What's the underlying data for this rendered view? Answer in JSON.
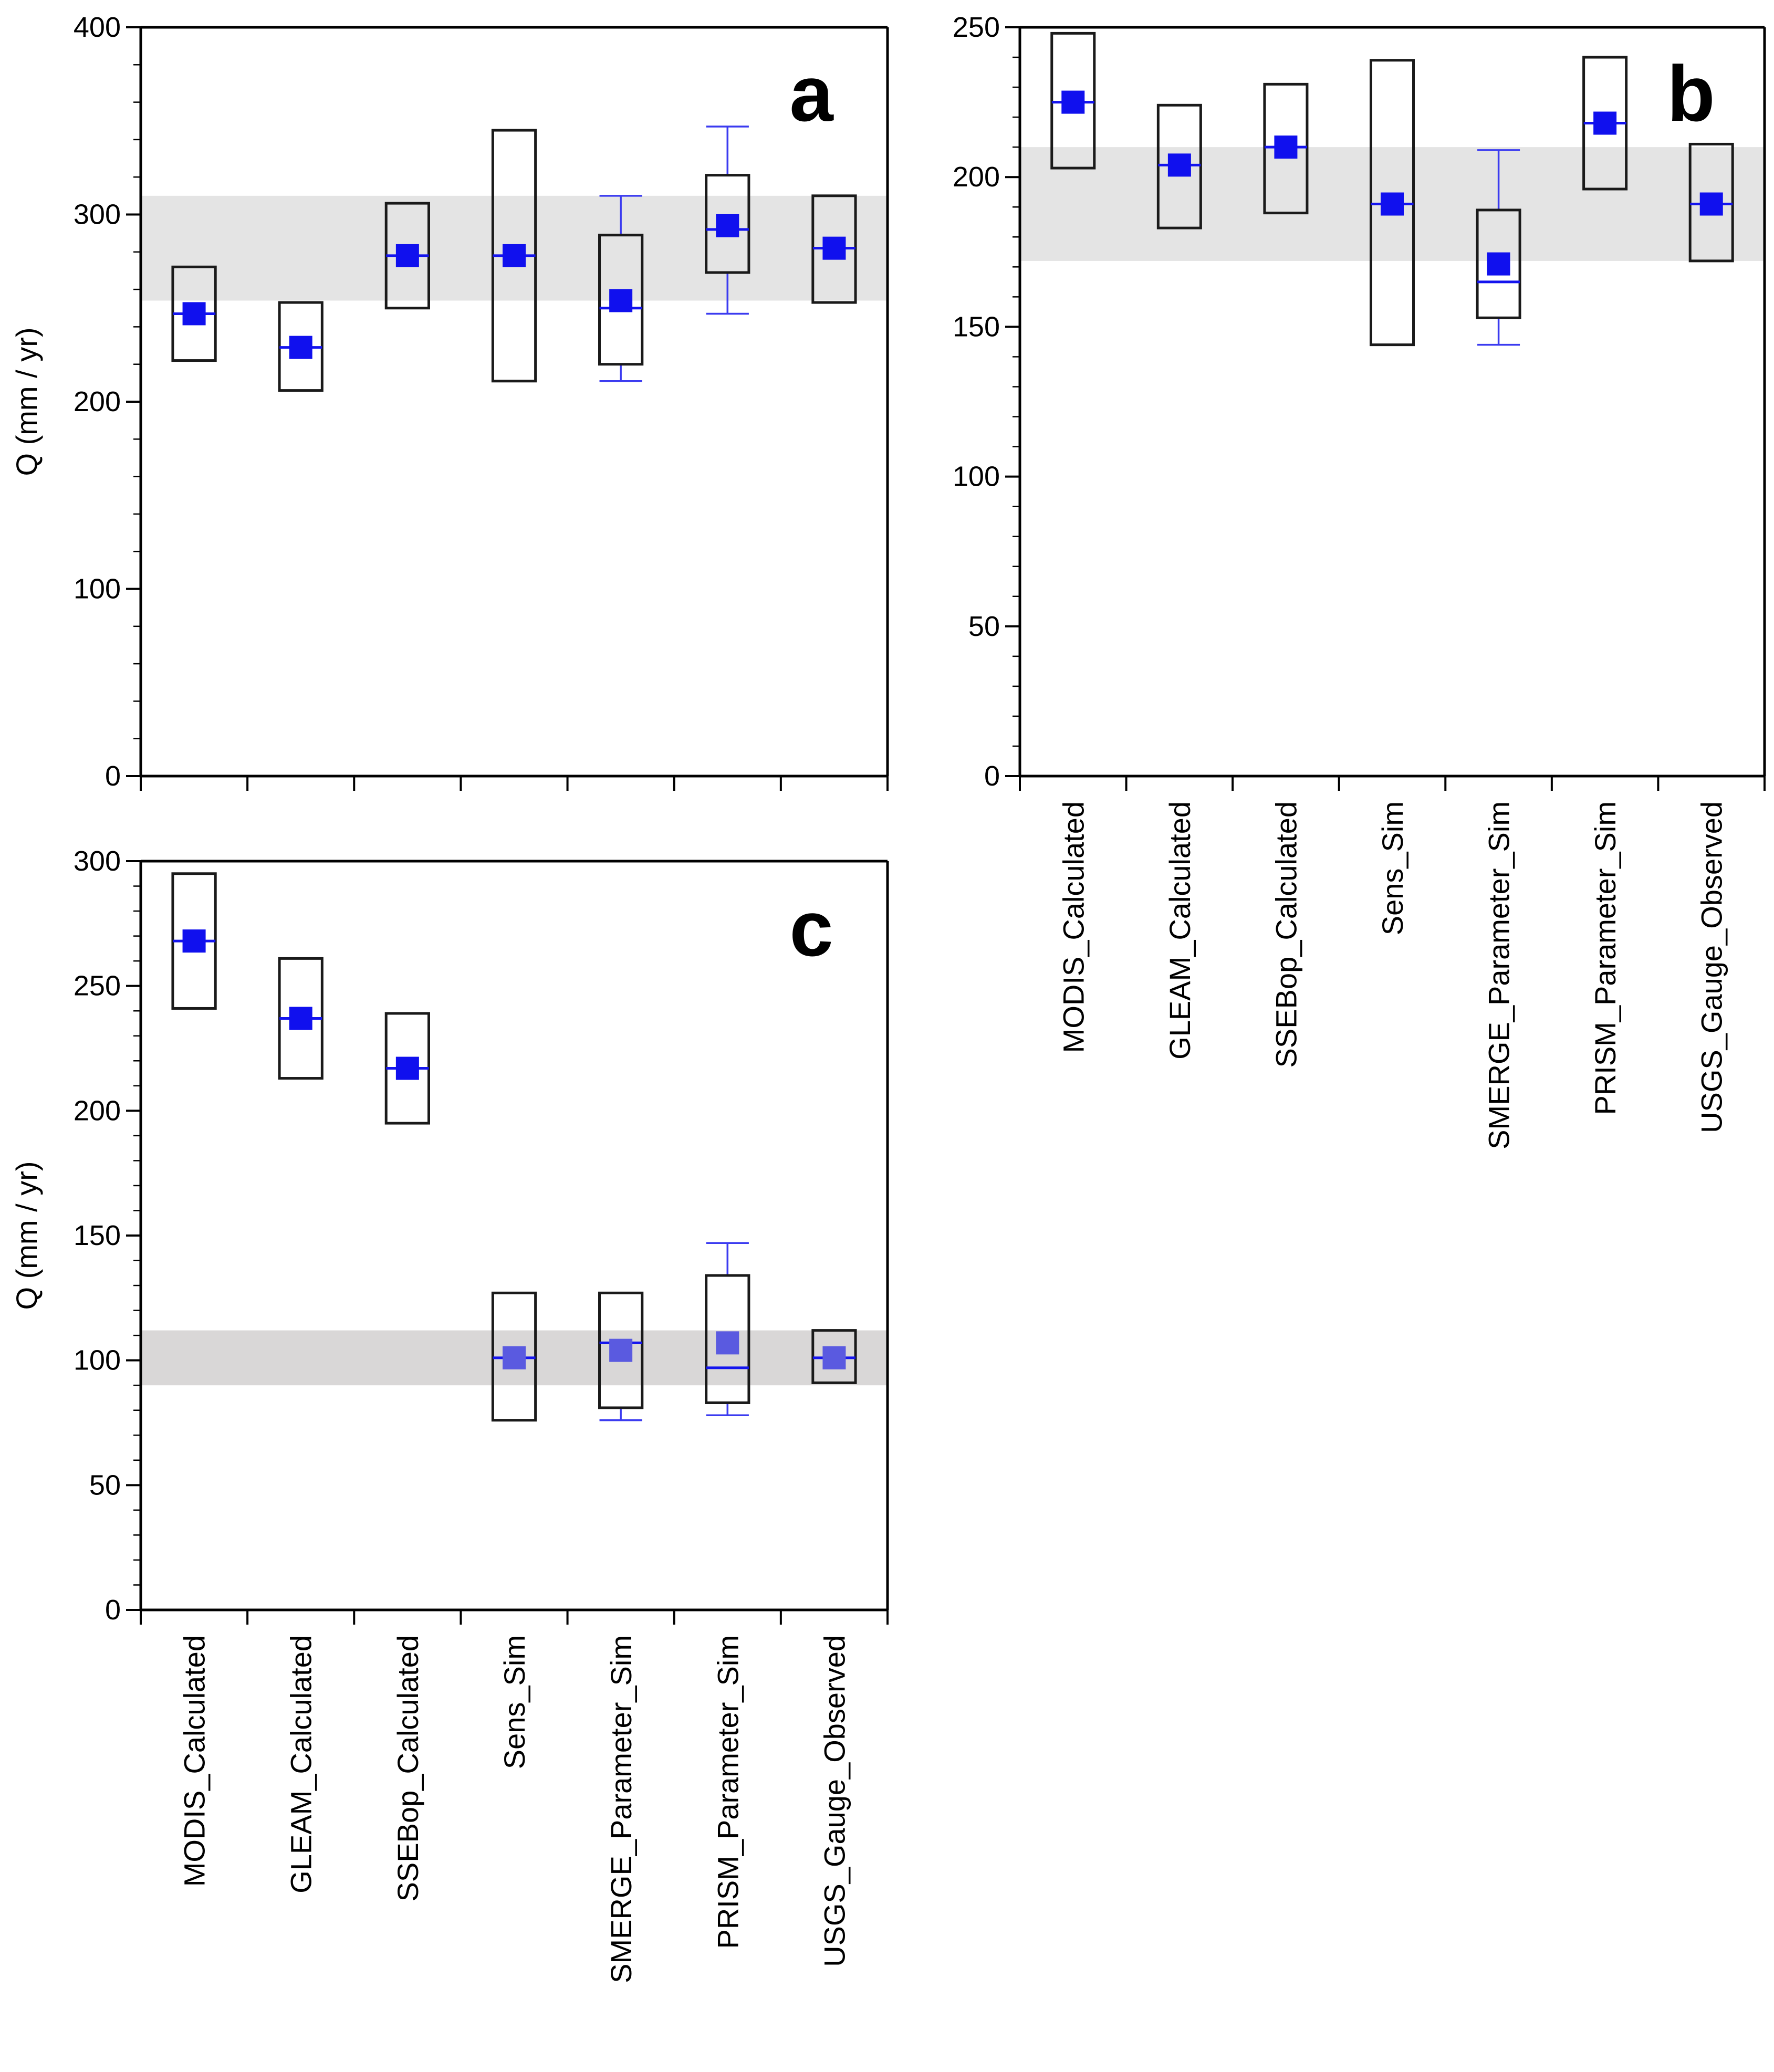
{
  "colors": {
    "band": "#e4e4e4",
    "band_c": "#d9d7d7",
    "marker": "#1010ee",
    "marker_light": "#5a5ae0",
    "box": "#1a1a1a",
    "whisker": "#3b3bf0"
  },
  "chart_data": [
    {
      "id": "a",
      "type": "box",
      "panel_label": "a",
      "ylabel": "Q (mm / yr)",
      "ylim": [
        0,
        400
      ],
      "yticks": [
        0,
        100,
        200,
        300,
        400
      ],
      "categories": [
        "MODIS_Calculated",
        "GLEAM_Calculated",
        "SSEBop_Calculated",
        "Sens_Sim",
        "SMERGE_Parameter_Sim",
        "PRISM_Parameter_Sim",
        "USGS_Gauge_Observed"
      ],
      "show_category_labels": false,
      "band": [
        254,
        310
      ],
      "boxes": [
        {
          "q1": 222,
          "q3": 272,
          "median": 247,
          "mean": 247
        },
        {
          "q1": 206,
          "q3": 253,
          "median": 229,
          "mean": 229
        },
        {
          "q1": 250,
          "q3": 306,
          "median": 278,
          "mean": 278
        },
        {
          "q1": 211,
          "q3": 345,
          "median": 278,
          "mean": 278
        },
        {
          "q1": 220,
          "q3": 289,
          "median": 250,
          "mean": 254,
          "whisker_low": 211,
          "whisker_high": 310
        },
        {
          "q1": 269,
          "q3": 321,
          "median": 292,
          "mean": 294,
          "whisker_low": 247,
          "whisker_high": 347
        },
        {
          "q1": 253,
          "q3": 310,
          "median": 282,
          "mean": 282
        }
      ]
    },
    {
      "id": "b",
      "type": "box",
      "panel_label": "b",
      "ylabel": "",
      "ylim": [
        0,
        250
      ],
      "yticks": [
        0,
        50,
        100,
        150,
        200,
        250
      ],
      "categories": [
        "MODIS_Calculated",
        "GLEAM_Calculated",
        "SSEBop_Calculated",
        "Sens_Sim",
        "SMERGE_Parameter_Sim",
        "PRISM_Parameter_Sim",
        "USGS_Gauge_Observed"
      ],
      "show_category_labels": true,
      "band": [
        172,
        210
      ],
      "boxes": [
        {
          "q1": 203,
          "q3": 248,
          "median": 225,
          "mean": 225
        },
        {
          "q1": 183,
          "q3": 224,
          "median": 204,
          "mean": 204
        },
        {
          "q1": 188,
          "q3": 231,
          "median": 210,
          "mean": 210
        },
        {
          "q1": 144,
          "q3": 239,
          "median": 191,
          "mean": 191
        },
        {
          "q1": 153,
          "q3": 189,
          "median": 165,
          "mean": 171,
          "whisker_low": 144,
          "whisker_high": 209
        },
        {
          "q1": 196,
          "q3": 240,
          "median": 218,
          "mean": 218
        },
        {
          "q1": 172,
          "q3": 211,
          "median": 191,
          "mean": 191
        }
      ]
    },
    {
      "id": "c",
      "type": "box",
      "panel_label": "c",
      "ylabel": "Q (mm / yr)",
      "ylim": [
        0,
        300
      ],
      "yticks": [
        0,
        50,
        100,
        150,
        200,
        250,
        300
      ],
      "categories": [
        "MODIS_Calculated",
        "GLEAM_Calculated",
        "SSEBop_Calculated",
        "Sens_Sim",
        "SMERGE_Parameter_Sim",
        "PRISM_Parameter_Sim",
        "USGS_Gauge_Observed"
      ],
      "show_category_labels": true,
      "band": [
        90,
        112
      ],
      "boxes": [
        {
          "q1": 241,
          "q3": 295,
          "median": 268,
          "mean": 268
        },
        {
          "q1": 213,
          "q3": 261,
          "median": 237,
          "mean": 237
        },
        {
          "q1": 195,
          "q3": 239,
          "median": 217,
          "mean": 217
        },
        {
          "q1": 76,
          "q3": 127,
          "median": 101,
          "mean": 101
        },
        {
          "q1": 81,
          "q3": 127,
          "median": 107,
          "mean": 104,
          "whisker_low": 76,
          "whisker_high": 127
        },
        {
          "q1": 83,
          "q3": 134,
          "median": 97,
          "mean": 107,
          "whisker_low": 78,
          "whisker_high": 147
        },
        {
          "q1": 91,
          "q3": 112,
          "median": 101,
          "mean": 101
        }
      ]
    }
  ]
}
